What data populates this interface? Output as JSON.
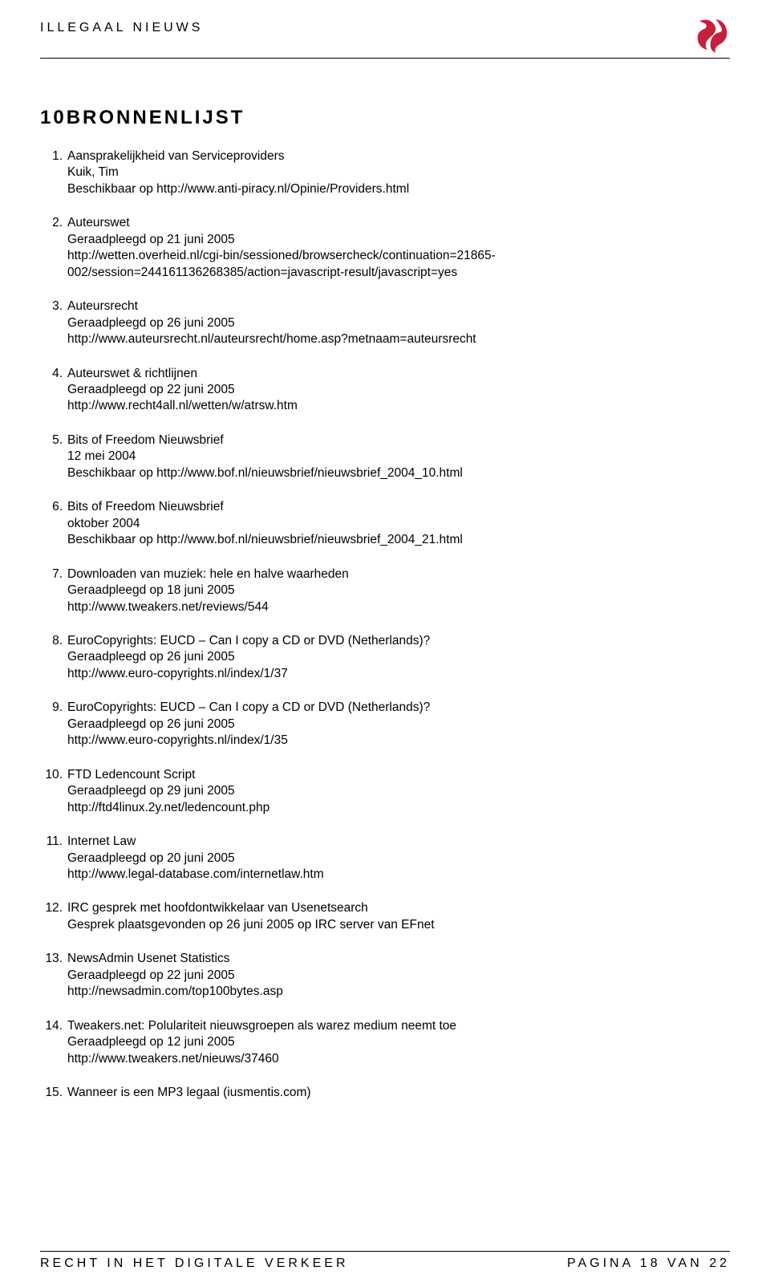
{
  "header": {
    "title": "ILLEGAAL NIEUWS"
  },
  "logo": {
    "color": "#c6213a"
  },
  "chapter": {
    "title": "10BRONNENLIJST"
  },
  "references": [
    {
      "title": "Aansprakelijkheid van Serviceproviders",
      "lines": [
        "Kuik, Tim",
        "Beschikbaar op http://www.anti-piracy.nl/Opinie/Providers.html"
      ]
    },
    {
      "title": "Auteurswet",
      "lines": [
        "Geraadpleegd op 21 juni 2005",
        "http://wetten.overheid.nl/cgi-bin/sessioned/browsercheck/continuation=21865-002/session=244161136268385/action=javascript-result/javascript=yes"
      ]
    },
    {
      "title": "Auteursrecht",
      "lines": [
        "Geraadpleegd op 26 juni 2005",
        "http://www.auteursrecht.nl/auteursrecht/home.asp?metnaam=auteursrecht"
      ]
    },
    {
      "title": "Auteurswet & richtlijnen",
      "lines": [
        "Geraadpleegd op 22 juni 2005",
        "http://www.recht4all.nl/wetten/w/atrsw.htm"
      ]
    },
    {
      "title": "Bits of Freedom Nieuwsbrief",
      "lines": [
        "12 mei 2004",
        "Beschikbaar op http://www.bof.nl/nieuwsbrief/nieuwsbrief_2004_10.html"
      ]
    },
    {
      "title": "Bits of Freedom Nieuwsbrief",
      "lines": [
        "oktober 2004",
        "Beschikbaar op http://www.bof.nl/nieuwsbrief/nieuwsbrief_2004_21.html"
      ]
    },
    {
      "title": "Downloaden van muziek: hele en halve waarheden",
      "lines": [
        "Geraadpleegd op 18 juni 2005",
        "http://www.tweakers.net/reviews/544"
      ]
    },
    {
      "title": "EuroCopyrights: EUCD – Can I copy a CD or DVD (Netherlands)?",
      "lines": [
        "Geraadpleegd op 26 juni 2005",
        "http://www.euro-copyrights.nl/index/1/37"
      ]
    },
    {
      "title": "EuroCopyrights: EUCD – Can I copy a CD or DVD (Netherlands)?",
      "lines": [
        "Geraadpleegd op 26 juni 2005",
        "http://www.euro-copyrights.nl/index/1/35"
      ]
    },
    {
      "title": "FTD Ledencount Script",
      "lines": [
        "Geraadpleegd op 29 juni 2005",
        "http://ftd4linux.2y.net/ledencount.php"
      ]
    },
    {
      "title": "Internet Law",
      "lines": [
        "Geraadpleegd op 20 juni 2005",
        "http://www.legal-database.com/internetlaw.htm"
      ]
    },
    {
      "title": "IRC gesprek met hoofdontwikkelaar van Usenetsearch",
      "lines": [
        "Gesprek plaatsgevonden op 26 juni 2005 op IRC server van EFnet"
      ]
    },
    {
      "title": "NewsAdmin Usenet Statistics",
      "lines": [
        "Geraadpleegd op 22 juni 2005",
        "http://newsadmin.com/top100bytes.asp"
      ]
    },
    {
      "title": "Tweakers.net: Polulariteit nieuwsgroepen als warez medium neemt toe",
      "lines": [
        "Geraadpleegd op 12 juni 2005",
        "http://www.tweakers.net/nieuws/37460"
      ]
    },
    {
      "title": "Wanneer is een MP3 legaal (iusmentis.com)",
      "lines": []
    }
  ],
  "footer": {
    "left": "RECHT IN HET DIGITALE VERKEER",
    "right": "PAGINA 18 VAN 22"
  }
}
